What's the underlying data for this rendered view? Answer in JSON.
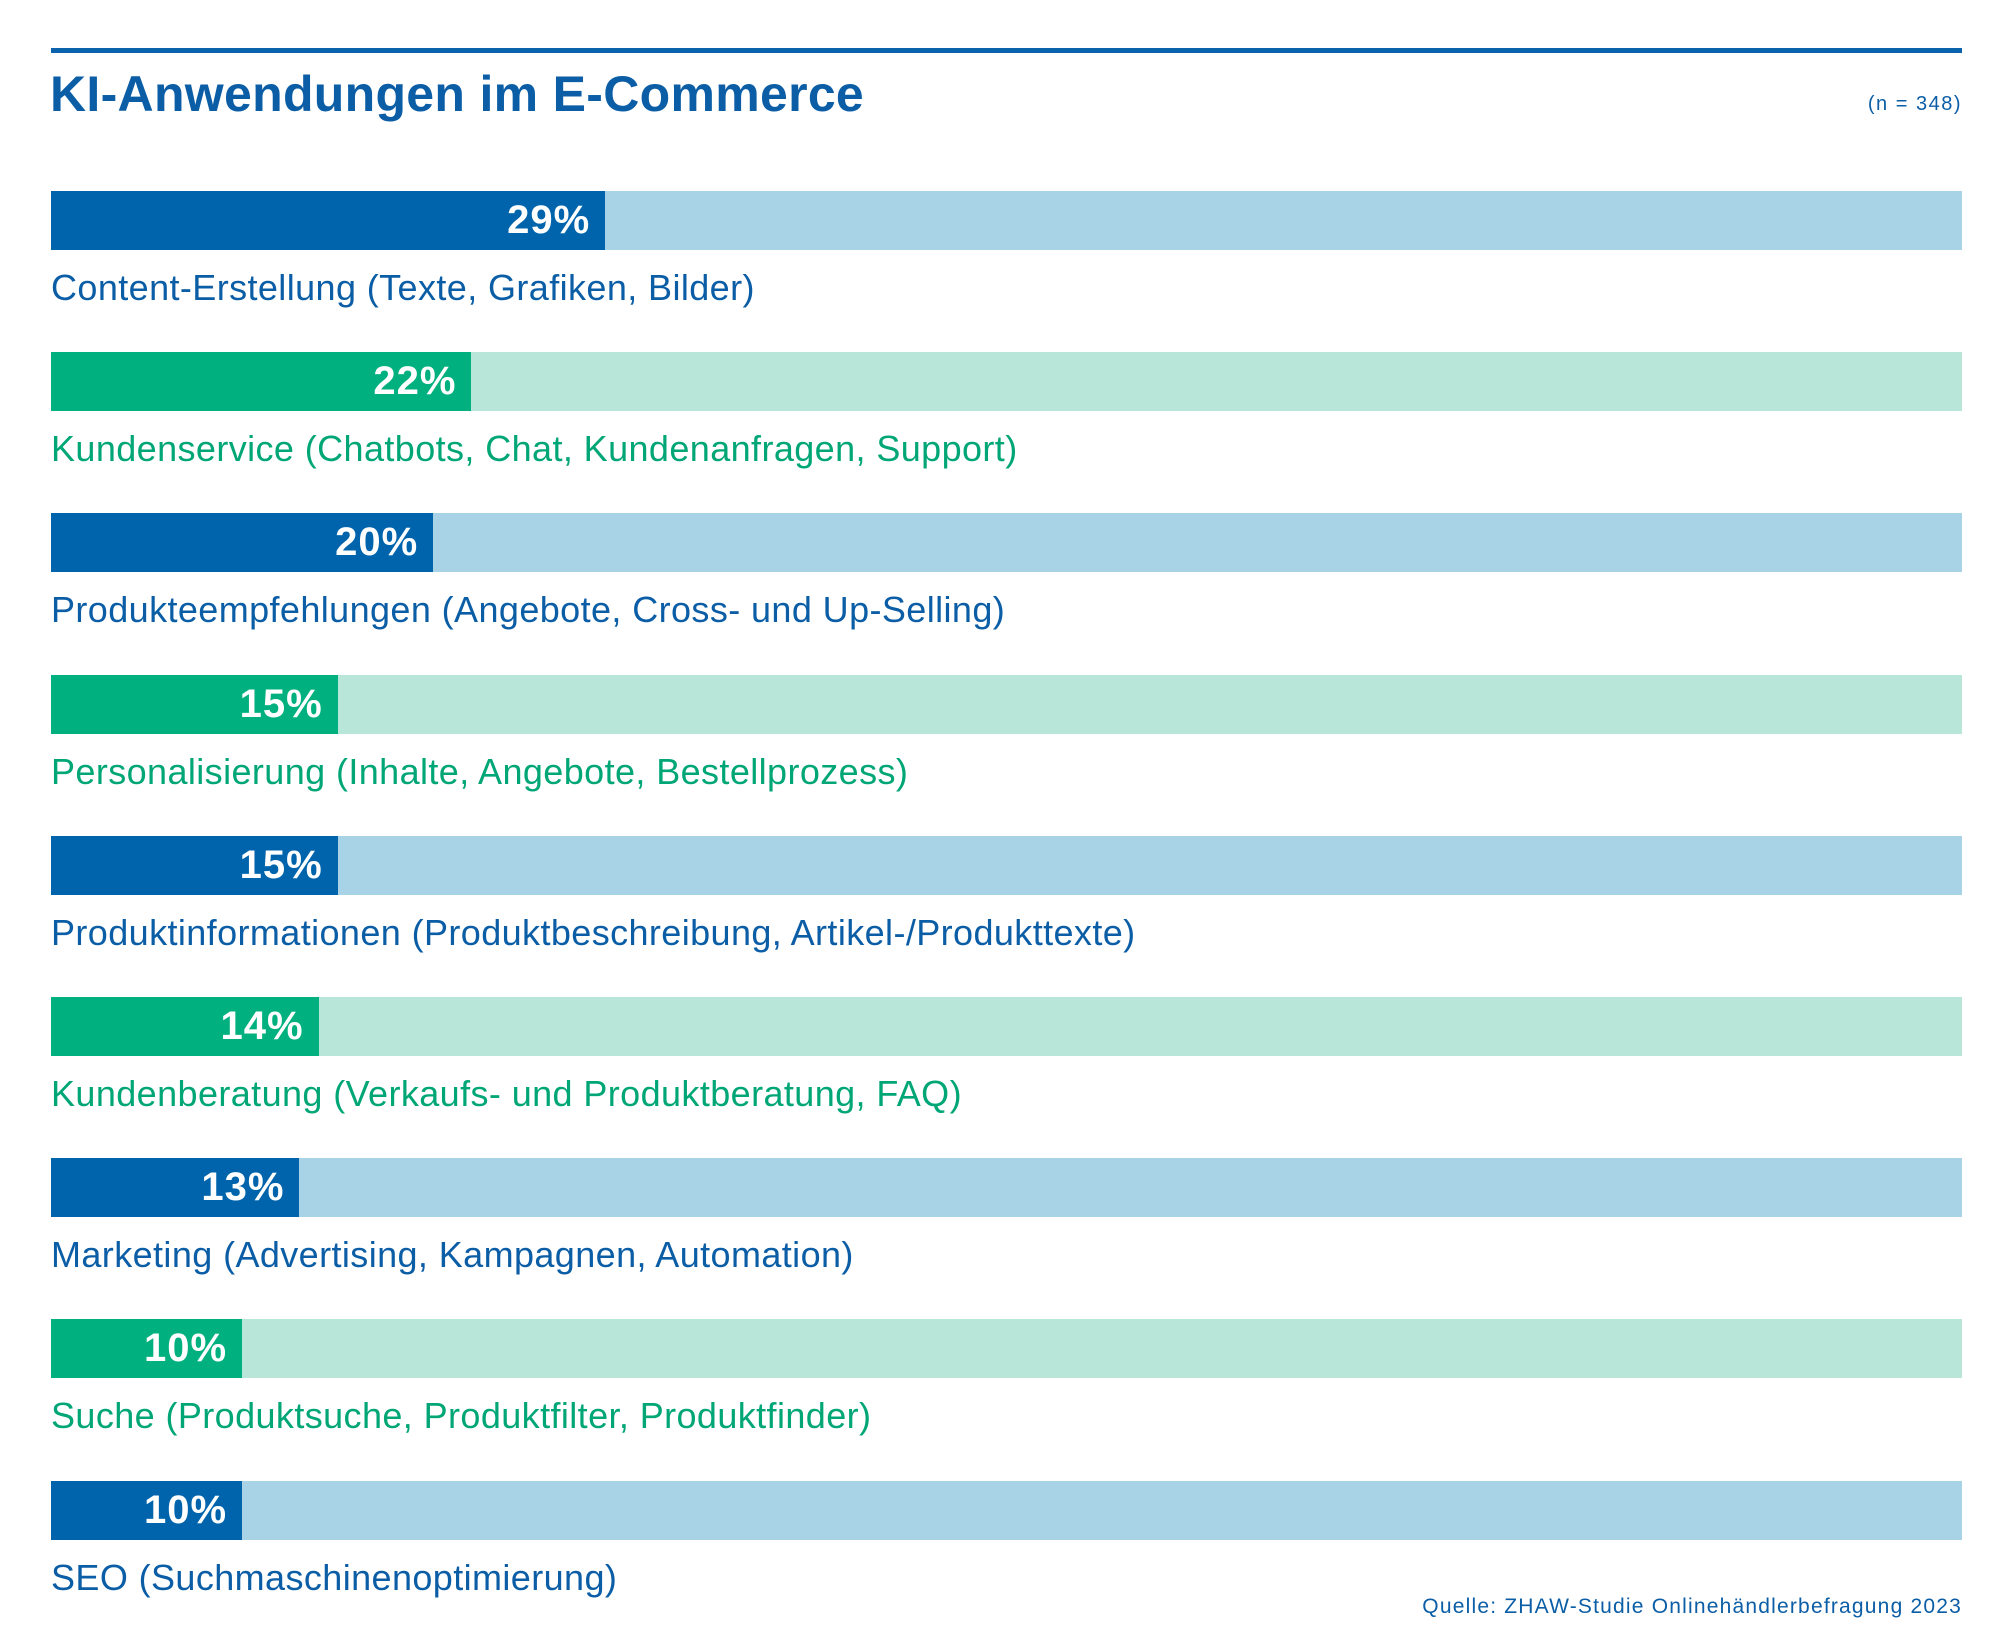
{
  "sample_size": "(n = 348)",
  "source": "Quelle: ZHAW-Studie Onlinehändlerbefragung 2023",
  "palette": {
    "blue": {
      "fill": "#0064ad",
      "track": "#a8d2e6",
      "label": "#0b5ea6"
    },
    "green": {
      "fill": "#00b07f",
      "track": "#b8e7d9",
      "label": "#00a676"
    },
    "title": "#0b5ea6",
    "rule": "#0b63ae"
  },
  "chart_data": {
    "type": "bar",
    "orientation": "horizontal",
    "title": "KI-Anwendungen im E-Commerce",
    "categories": [
      "Content-Erstellung (Texte, Grafiken, Bilder)",
      "Kundenservice (Chatbots, Chat, Kundenanfragen, Support)",
      "Produkteempfehlungen (Angebote, Cross- und Up-Selling)",
      "Personalisierung (Inhalte, Angebote, Bestellprozess)",
      "Produktinformationen (Produktbeschreibung, Artikel-/Produkttexte)",
      "Kundenberatung (Verkaufs- und Produktberatung, FAQ)",
      "Marketing (Advertising, Kampagnen, Automation)",
      "Suche (Produktsuche, Produktfilter, Produktfinder)",
      "SEO (Suchmaschinenoptimierung)"
    ],
    "values": [
      29,
      22,
      20,
      15,
      15,
      14,
      13,
      10,
      10
    ],
    "value_labels": [
      "29%",
      "22%",
      "20%",
      "15%",
      "15%",
      "14%",
      "13%",
      "10%",
      "10%"
    ],
    "bar_colors": [
      "blue",
      "green",
      "blue",
      "green",
      "blue",
      "green",
      "blue",
      "green",
      "blue"
    ],
    "xlim": [
      0,
      100
    ],
    "grid": false,
    "legend": "none"
  }
}
